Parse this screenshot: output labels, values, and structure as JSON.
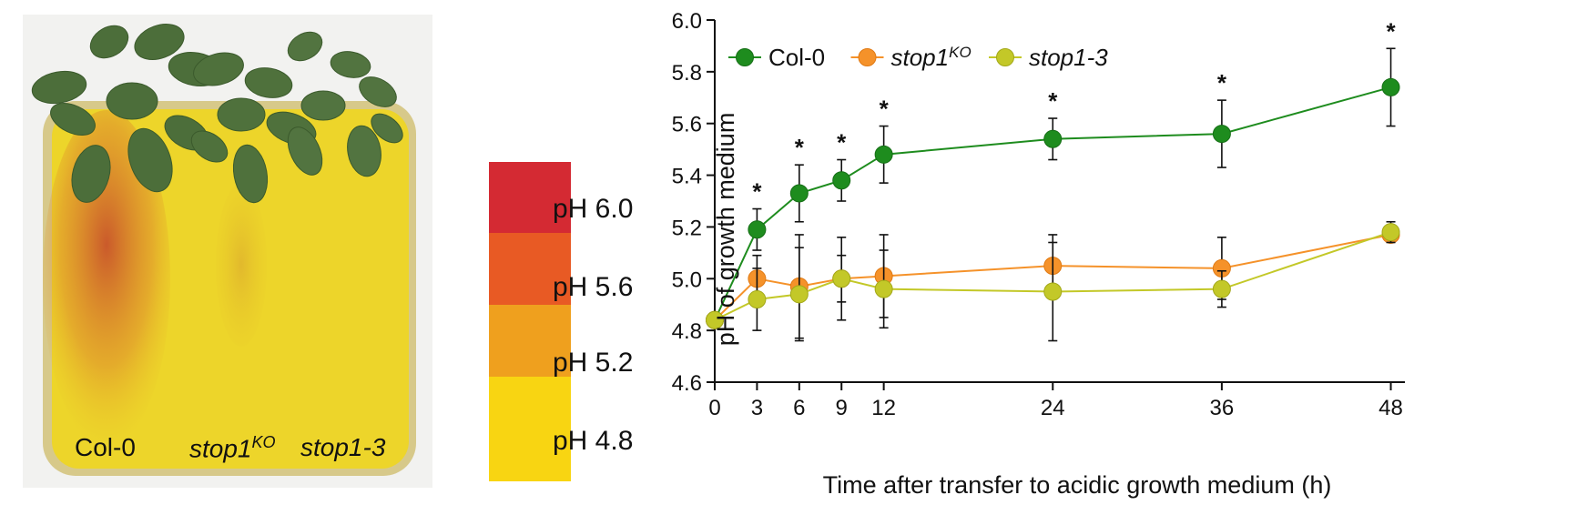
{
  "photo": {
    "labels": {
      "col0": "Col-0",
      "stop1ko_base": "stop1",
      "stop1ko_sup": "KO",
      "stop13": "stop1-3"
    }
  },
  "ph_scale": {
    "items": [
      {
        "label": "pH 6.0",
        "color": "#d42a33"
      },
      {
        "label": "pH 5.6",
        "color": "#e85a24"
      },
      {
        "label": "pH 5.2",
        "color": "#efa01e"
      },
      {
        "label": "pH 4.8",
        "color": "#f8d512"
      }
    ]
  },
  "chart_data": {
    "type": "line",
    "xlabel": "Time after transfer to acidic growth medium (h)",
    "ylabel": "pH of growth medium",
    "xlim": [
      0,
      49
    ],
    "ylim": [
      4.6,
      6.0
    ],
    "x_ticks": [
      0,
      3,
      6,
      9,
      12,
      24,
      36,
      48
    ],
    "y_ticks": [
      4.6,
      4.8,
      5.0,
      5.2,
      5.4,
      5.6,
      5.8,
      6.0
    ],
    "y_tick_labels": [
      "4.6",
      "4.8",
      "5.0",
      "5.2",
      "5.4",
      "5.6",
      "5.8",
      "6.0"
    ],
    "x": [
      0,
      3,
      6,
      9,
      12,
      24,
      36,
      48
    ],
    "legend_position": "top-left",
    "series": [
      {
        "name": "Col-0",
        "name_sup": "",
        "italic": false,
        "color": "#1e8c1e",
        "edge": "#166e16",
        "values": [
          4.84,
          5.19,
          5.33,
          5.38,
          5.48,
          5.54,
          5.56,
          5.74
        ],
        "errors": [
          0.0,
          0.08,
          0.11,
          0.08,
          0.11,
          0.08,
          0.13,
          0.15
        ]
      },
      {
        "name": "stop1",
        "name_sup": "KO",
        "italic": true,
        "color": "#f5922a",
        "edge": "#e07a14",
        "values": [
          4.84,
          5.0,
          4.97,
          5.0,
          5.01,
          5.05,
          5.04,
          5.17
        ],
        "errors": [
          0.0,
          0.09,
          0.2,
          0.09,
          0.16,
          0.12,
          0.12,
          0.0
        ]
      },
      {
        "name": "stop1-3",
        "name_sup": "",
        "italic": true,
        "color": "#c3c828",
        "edge": "#a3a818",
        "values": [
          4.84,
          4.92,
          4.94,
          5.0,
          4.96,
          4.95,
          4.96,
          5.18
        ],
        "errors": [
          0.0,
          0.12,
          0.18,
          0.16,
          0.15,
          0.19,
          0.07,
          0.04
        ]
      }
    ],
    "annotations": [
      {
        "x": 3,
        "text": "*"
      },
      {
        "x": 6,
        "text": "*"
      },
      {
        "x": 9,
        "text": "*"
      },
      {
        "x": 12,
        "text": "*"
      },
      {
        "x": 24,
        "text": "*"
      },
      {
        "x": 36,
        "text": "*"
      },
      {
        "x": 48,
        "text": "*"
      }
    ]
  }
}
